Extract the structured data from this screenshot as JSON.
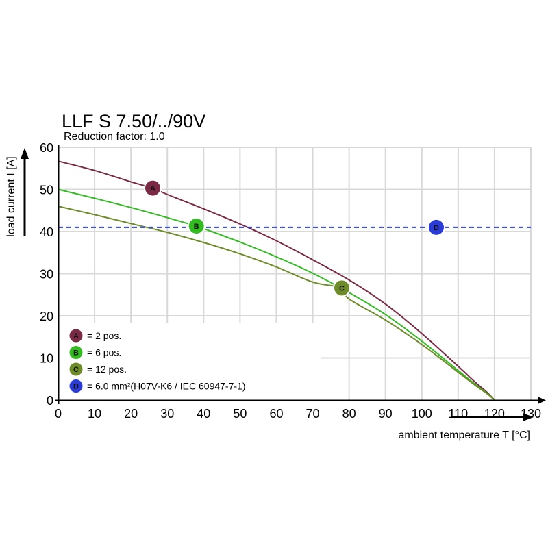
{
  "title": "LLF S 7.50/../90V",
  "subtitle": "Reduction factor: 1.0",
  "chart_data": {
    "type": "line",
    "title": "LLF S 7.50/../90V",
    "subtitle": "Reduction factor: 1.0",
    "xlabel": "ambient temperature T [°C]",
    "ylabel": "load current I [A]",
    "xlim": [
      0,
      130
    ],
    "ylim": [
      0,
      60
    ],
    "xticks": [
      0,
      10,
      20,
      30,
      40,
      50,
      60,
      70,
      80,
      90,
      100,
      110,
      120,
      130
    ],
    "yticks": [
      0,
      10,
      20,
      30,
      40,
      50,
      60
    ],
    "grid": true,
    "legend_position": "bottom-left",
    "series": [
      {
        "id": "A",
        "name": "= 2 pos.",
        "color": "#7a2a45",
        "style": "solid",
        "x": [
          0,
          10,
          20,
          26,
          30,
          40,
          50,
          60,
          70,
          80,
          90,
          100,
          110,
          115,
          118,
          120
        ],
        "y": [
          56.7,
          54.5,
          51.8,
          50.3,
          48.8,
          45.4,
          41.8,
          37.8,
          33.3,
          28.5,
          22.8,
          15.8,
          8.0,
          4.0,
          1.8,
          0
        ],
        "marker": {
          "x": 26,
          "y": 50.3
        }
      },
      {
        "id": "B",
        "name": "= 6 pos.",
        "color": "#33bb22",
        "style": "solid",
        "x": [
          0,
          10,
          20,
          30,
          38,
          40,
          50,
          60,
          70,
          80,
          90,
          100,
          110,
          115,
          118,
          120
        ],
        "y": [
          50.0,
          47.9,
          45.7,
          43.3,
          41.3,
          40.7,
          37.5,
          34.0,
          30.1,
          25.5,
          20.3,
          14.0,
          7.0,
          3.5,
          1.6,
          0
        ],
        "marker": {
          "x": 38,
          "y": 41.3
        }
      },
      {
        "id": "C",
        "name": "= 12 pos.",
        "color": "#6e8c2a",
        "style": "solid",
        "x": [
          0,
          10,
          20,
          30,
          40,
          50,
          60,
          70,
          78,
          80,
          90,
          100,
          110,
          115,
          118,
          120
        ],
        "y": [
          46.0,
          44.0,
          41.9,
          39.8,
          37.4,
          34.7,
          31.6,
          28.0,
          26.6,
          24.0,
          19.0,
          13.2,
          6.6,
          3.3,
          1.5,
          0
        ],
        "marker": {
          "x": 78,
          "y": 26.6
        }
      },
      {
        "id": "D",
        "name": "= 6.0 mm²(H07V-K6 / IEC 60947-7-1)",
        "color": "#2a3bd6",
        "style": "dashed",
        "x": [
          0,
          130
        ],
        "y": [
          41,
          41
        ],
        "marker": {
          "x": 104,
          "y": 41
        }
      }
    ]
  }
}
